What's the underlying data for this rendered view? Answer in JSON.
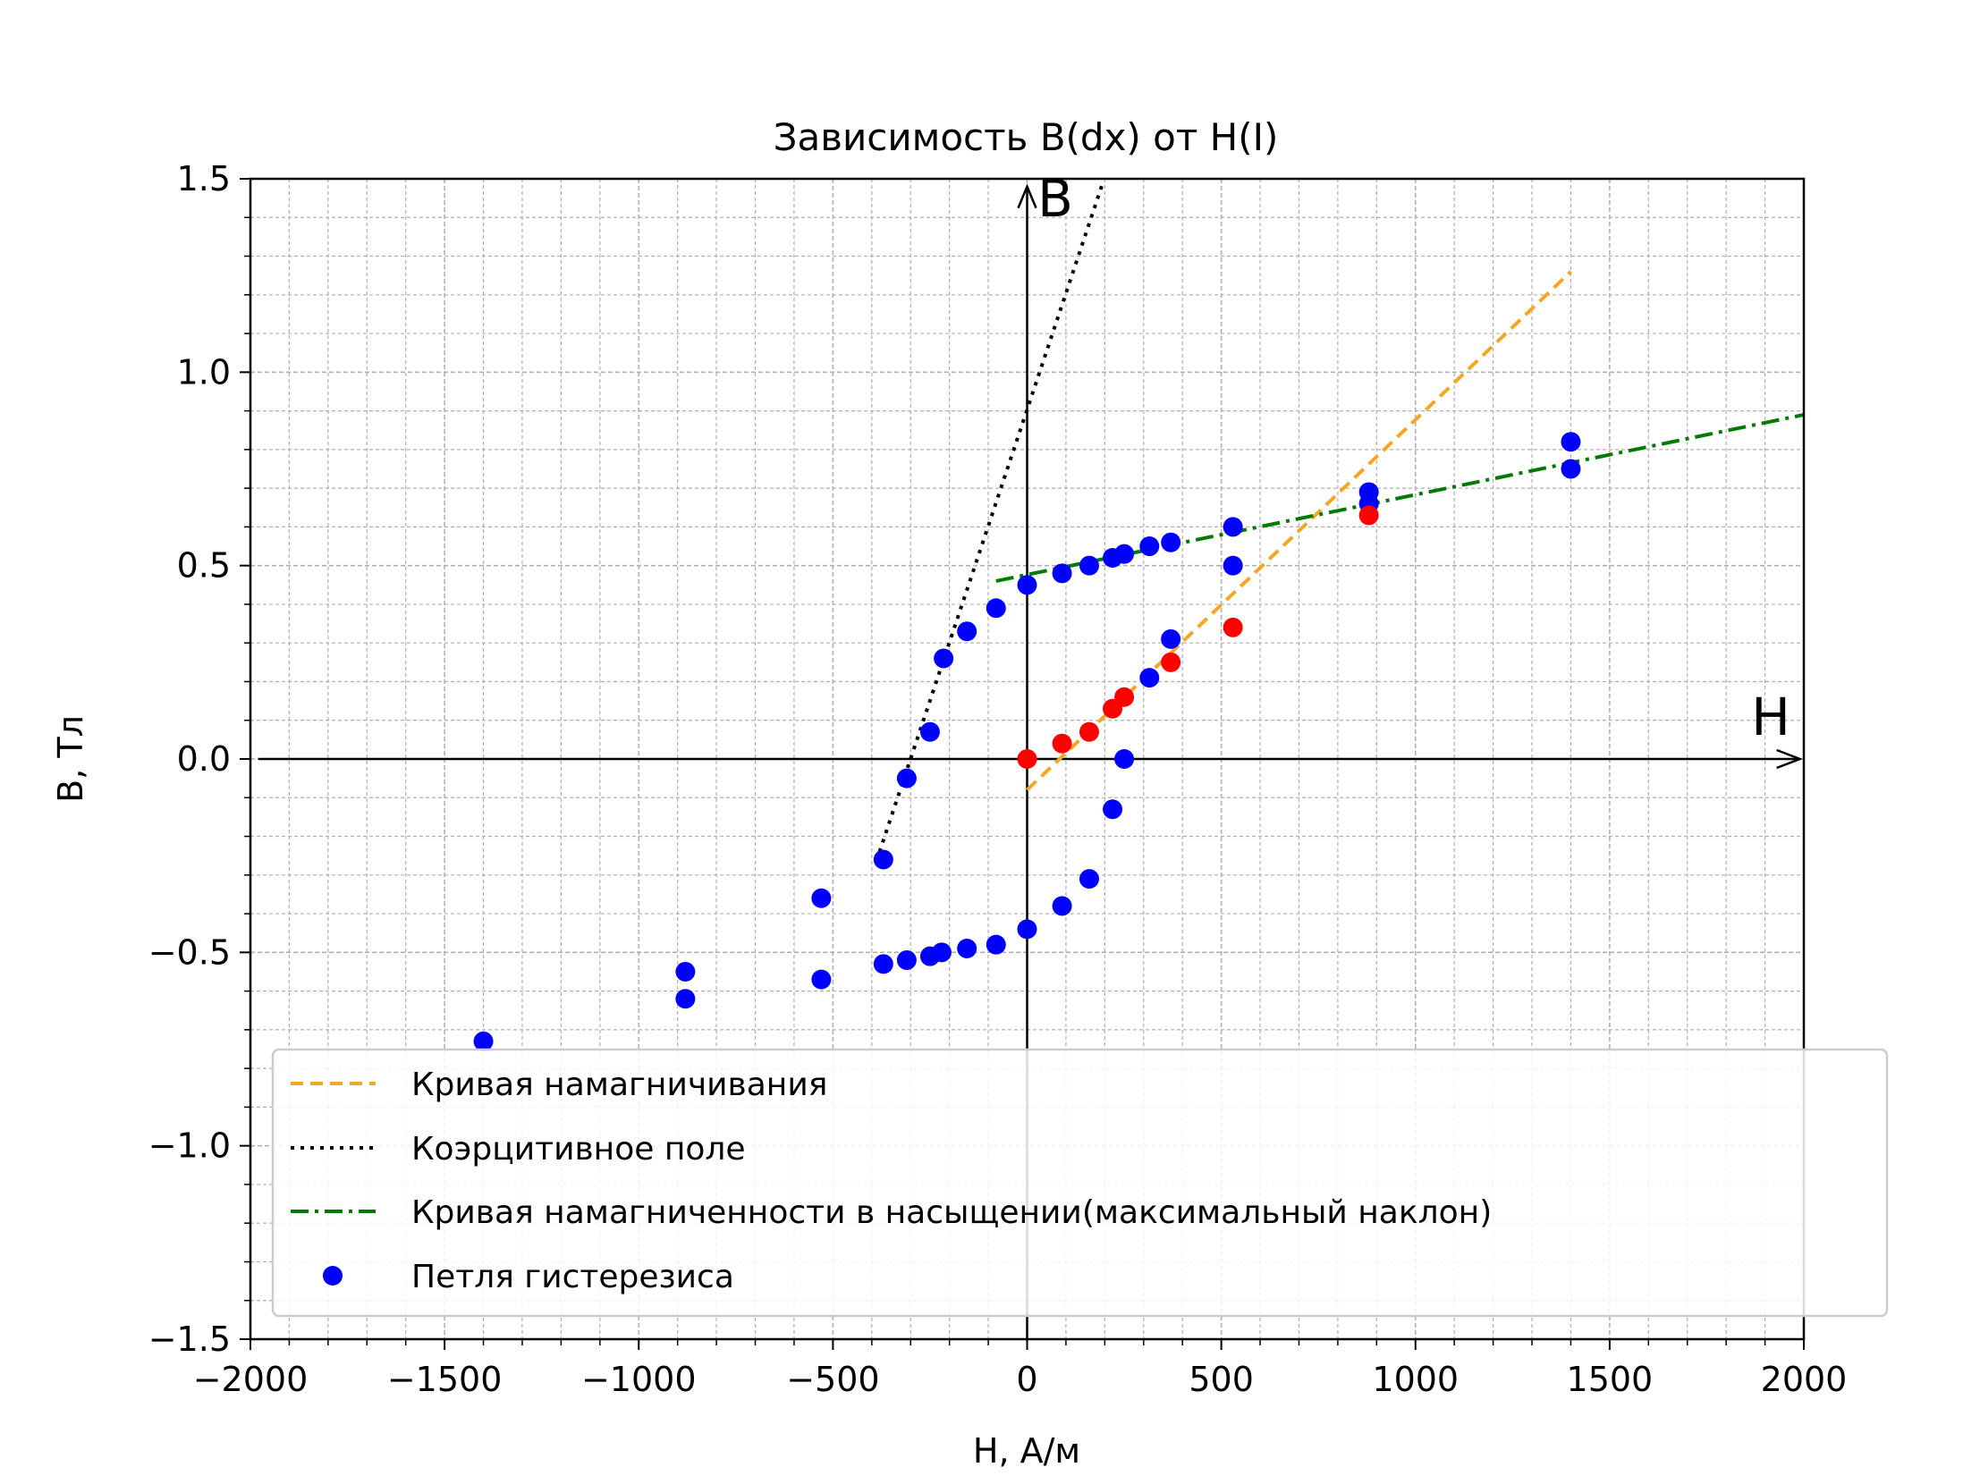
{
  "chart_data": {
    "type": "scatter",
    "title": "Зависимость B(dx) от H(I)",
    "xlabel": "H, А/м",
    "ylabel": "B, Тл",
    "xlim": [
      -2000,
      2000
    ],
    "ylim": [
      -1.5,
      1.5
    ],
    "xticks": [
      -2000,
      -1500,
      -1000,
      -500,
      0,
      500,
      1000,
      1500,
      2000
    ],
    "xtick_labels": [
      "−2000",
      "−1500",
      "−1000",
      "−500",
      "0",
      "500",
      "1000",
      "1500",
      "2000"
    ],
    "yticks": [
      -1.5,
      -1.0,
      -0.5,
      0.0,
      0.5,
      1.0,
      1.5
    ],
    "ytick_labels": [
      "−1.5",
      "−1.0",
      "−0.5",
      "0.0",
      "0.5",
      "1.0",
      "1.5"
    ],
    "grid": true,
    "legend_position": "lower-right",
    "axis_arrow_labels": {
      "x": "H",
      "y": "B"
    },
    "colors": {
      "magnetization": "#f5a623",
      "coercive": "#000000",
      "saturation": "#007a00",
      "loop_points": "#0000ff",
      "initial_points": "#ff0000",
      "grid": "#b0b0b0"
    },
    "series": [
      {
        "name": "Кривая намагничивания",
        "kind": "line",
        "style": "dashed",
        "color": "#f5a623",
        "x": [
          0,
          1400
        ],
        "y": [
          -0.08,
          1.26
        ]
      },
      {
        "name": "Коэрцитивное поле",
        "kind": "line",
        "style": "dotted",
        "color": "#000000",
        "x": [
          -380,
          195
        ],
        "y": [
          -0.24,
          1.49
        ]
      },
      {
        "name": "Кривая намагниченности в насыщении(максимальный наклон)",
        "kind": "line",
        "style": "dashdot",
        "color": "#007a00",
        "x": [
          -80,
          2000
        ],
        "y": [
          0.46,
          0.89
        ]
      },
      {
        "name": "Петля гистерезиса",
        "kind": "scatter",
        "color": "#0000ff",
        "points": [
          [
            1400,
            0.82
          ],
          [
            1400,
            0.75
          ],
          [
            880,
            0.69
          ],
          [
            880,
            0.66
          ],
          [
            530,
            0.6
          ],
          [
            370,
            0.56
          ],
          [
            315,
            0.55
          ],
          [
            250,
            0.53
          ],
          [
            220,
            0.52
          ],
          [
            160,
            0.5
          ],
          [
            90,
            0.48
          ],
          [
            0,
            0.45
          ],
          [
            -80,
            0.39
          ],
          [
            -155,
            0.33
          ],
          [
            -215,
            0.26
          ],
          [
            -250,
            0.07
          ],
          [
            -310,
            -0.05
          ],
          [
            -370,
            -0.26
          ],
          [
            -530,
            -0.36
          ],
          [
            -530,
            -0.57
          ],
          [
            -370,
            -0.53
          ],
          [
            -310,
            -0.52
          ],
          [
            -250,
            -0.51
          ],
          [
            -220,
            -0.5
          ],
          [
            -155,
            -0.49
          ],
          [
            -80,
            -0.48
          ],
          [
            0,
            -0.44
          ],
          [
            90,
            -0.38
          ],
          [
            160,
            -0.31
          ],
          [
            220,
            -0.13
          ],
          [
            250,
            0.0
          ],
          [
            315,
            0.21
          ],
          [
            370,
            0.31
          ],
          [
            530,
            0.5
          ],
          [
            -880,
            -0.55
          ],
          [
            -880,
            -0.62
          ],
          [
            -1400,
            -0.73
          ]
        ]
      },
      {
        "kind": "scatter",
        "color": "#ff0000",
        "points": [
          [
            0,
            0.0
          ],
          [
            90,
            0.04
          ],
          [
            160,
            0.07
          ],
          [
            220,
            0.13
          ],
          [
            250,
            0.16
          ],
          [
            370,
            0.25
          ],
          [
            530,
            0.34
          ],
          [
            880,
            0.63
          ]
        ]
      }
    ]
  }
}
